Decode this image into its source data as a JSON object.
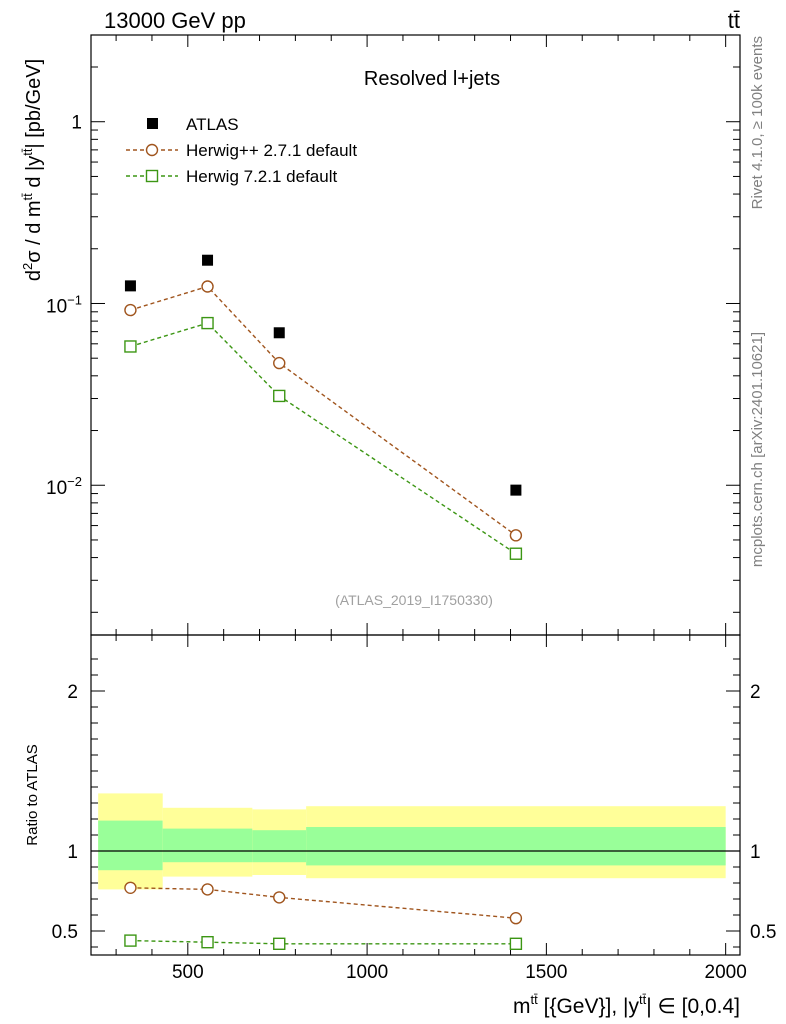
{
  "header": {
    "left": "13000 GeV pp",
    "right": "tt̄"
  },
  "side_text": {
    "rivet": "Rivet 4.1.0, ≥ 100k events",
    "mcplots": "mcplots.cern.ch [arXiv:2401.10621]"
  },
  "colors": {
    "data": "#000000",
    "herwigpp": "#a0551e",
    "herwig7": "#3c9614",
    "band_inner": "#99ff99",
    "band_outer": "#ffff99"
  },
  "chart_data": {
    "type": "scatter",
    "title": "Resolved l+jets",
    "analysis_id": "(ATLAS_2019_I1750330)",
    "xlabel": "m^{tt̄} [{GeV}], |y^{tt̄}| ∈ [0,0.4]",
    "ylabel_main": "d²σ / d m^{tt̄} d |y^{tt̄}| [pb/GeV]",
    "ylabel_ratio": "Ratio to ATLAS",
    "xlim": [
      230,
      2040
    ],
    "ylim_main": [
      0.0015,
      3.0
    ],
    "ylim_ratio": [
      0.35,
      2.35
    ],
    "yscale_main": "log",
    "x_ticks": [
      500,
      1000,
      1500,
      2000
    ],
    "x_tick_labels": [
      "500",
      "1000",
      "1500",
      "2000"
    ],
    "y_main_tick_labels": [
      "1",
      "10^{-1}",
      "10^{-2}"
    ],
    "y_ratio_ticks": [
      0.5,
      1,
      2
    ],
    "y_ratio_tick_labels": [
      "0.5",
      "1",
      "2"
    ],
    "legend": [
      "ATLAS",
      "Herwig++ 2.7.1 default",
      "Herwig 7.2.1 default"
    ],
    "bins": [
      [
        250,
        430
      ],
      [
        430,
        680
      ],
      [
        680,
        830
      ],
      [
        830,
        2000
      ]
    ],
    "x": [
      340,
      555,
      755,
      1415
    ],
    "data": {
      "name": "ATLAS",
      "values": [
        0.125,
        0.173,
        0.069,
        0.0094
      ]
    },
    "series": [
      {
        "name": "Herwig++ 2.7.1 default",
        "marker": "circle",
        "values": [
          0.092,
          0.124,
          0.047,
          0.0053
        ],
        "ratio": [
          0.77,
          0.76,
          0.71,
          0.58
        ],
        "ratio_err": [
          0.01,
          0.01,
          0.03,
          0.03
        ]
      },
      {
        "name": "Herwig 7.2.1 default",
        "marker": "square",
        "values": [
          0.058,
          0.078,
          0.031,
          0.0042
        ],
        "ratio": [
          0.44,
          0.43,
          0.42,
          0.42
        ],
        "ratio_err": [
          0.01,
          0.01,
          0.03,
          0.03
        ]
      }
    ],
    "band_outer": [
      [
        0.76,
        1.36
      ],
      [
        0.84,
        1.27
      ],
      [
        0.85,
        1.26
      ],
      [
        0.83,
        1.28
      ]
    ],
    "band_inner": [
      [
        0.88,
        1.19
      ],
      [
        0.93,
        1.14
      ],
      [
        0.93,
        1.13
      ],
      [
        0.91,
        1.15
      ]
    ]
  }
}
